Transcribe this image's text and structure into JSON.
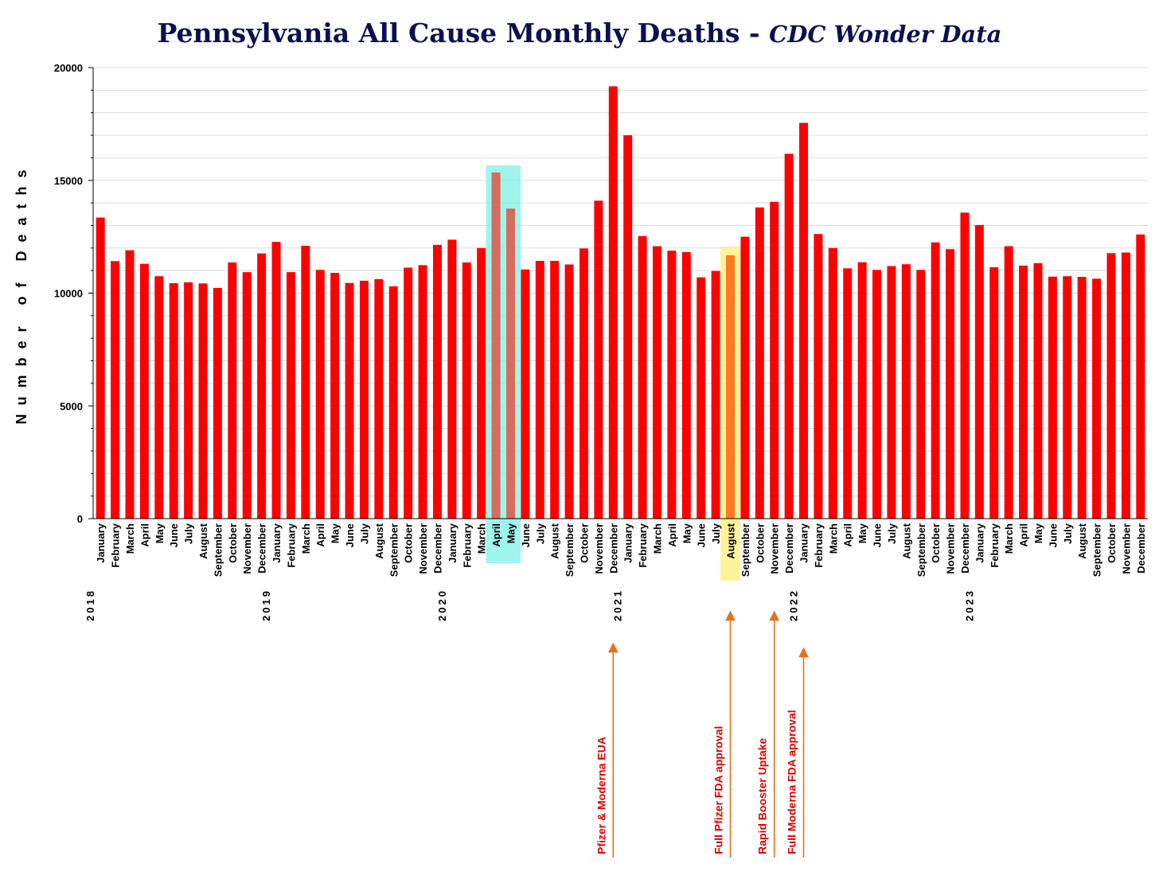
{
  "title": {
    "main": "Pennsylvania All Cause Monthly Deaths - ",
    "subtitle": "CDC Wonder Data"
  },
  "colors": {
    "bar": "#ff0000",
    "title": "#0d1150",
    "annotation": "#e8701c",
    "annotation_text": "#e00000",
    "highlight_teal": "#7ff0e4",
    "highlight_yellow": "#fff07a",
    "bar_teal_highlight": "#d86c5c",
    "bar_yellow_highlight": "#ff7a22"
  },
  "chart_data": {
    "type": "bar",
    "title": "Pennsylvania All Cause Monthly Deaths - CDC Wonder Data",
    "xlabel": "",
    "ylabel": "Number of Deaths",
    "ylim": [
      0,
      20000
    ],
    "yticks": [
      0,
      5000,
      10000,
      15000,
      20000
    ],
    "grid": true,
    "years": [
      {
        "label": "2018",
        "start_index": 0
      },
      {
        "label": "2019",
        "start_index": 12
      },
      {
        "label": "2020",
        "start_index": 24
      },
      {
        "label": "2021",
        "start_index": 36
      },
      {
        "label": "2022",
        "start_index": 48
      },
      {
        "label": "2023",
        "start_index": 60
      }
    ],
    "categories": [
      "January",
      "February",
      "March",
      "April",
      "May",
      "June",
      "July",
      "August",
      "September",
      "October",
      "November",
      "December",
      "January",
      "February",
      "March",
      "April",
      "May",
      "June",
      "July",
      "August",
      "September",
      "October",
      "November",
      "December",
      "January",
      "February",
      "March",
      "April",
      "May",
      "June",
      "July",
      "August",
      "September",
      "October",
      "November",
      "December",
      "January",
      "February",
      "March",
      "April",
      "May",
      "June",
      "July",
      "August",
      "September",
      "October",
      "November",
      "December",
      "January",
      "February",
      "March",
      "April",
      "May",
      "June",
      "July",
      "August",
      "September",
      "October",
      "November",
      "December",
      "January",
      "February",
      "March",
      "April",
      "May",
      "June",
      "July",
      "August",
      "September",
      "October",
      "November",
      "December"
    ],
    "values": [
      13350,
      11420,
      11900,
      11300,
      10750,
      10440,
      10480,
      10430,
      10230,
      11360,
      10930,
      11760,
      12270,
      10930,
      12100,
      11030,
      10900,
      10450,
      10550,
      10620,
      10300,
      11130,
      11240,
      12140,
      12370,
      11360,
      12000,
      15350,
      13750,
      11050,
      11430,
      11430,
      11270,
      11980,
      14100,
      19170,
      17000,
      12530,
      12080,
      11880,
      11820,
      10700,
      10980,
      11680,
      12500,
      13800,
      14050,
      16180,
      17550,
      12620,
      12000,
      11100,
      11370,
      11030,
      11200,
      11280,
      11030,
      12250,
      11950,
      13570,
      13020,
      11150,
      12080,
      11220,
      11330,
      10730,
      10750,
      10720,
      10640,
      11770,
      11800,
      12600
    ],
    "highlights": [
      {
        "indices": [
          27,
          28
        ],
        "color": "teal"
      },
      {
        "indices": [
          43
        ],
        "color": "yellow"
      }
    ],
    "annotations": [
      {
        "label": "Pfizer & Moderna EUA",
        "index": 35
      },
      {
        "label": "Full Pfizer FDA approval",
        "index": 43
      },
      {
        "label": "Rapid Booster Uptake",
        "index": 46
      },
      {
        "label": "Full Moderna FDA approval",
        "index": 48
      }
    ]
  }
}
